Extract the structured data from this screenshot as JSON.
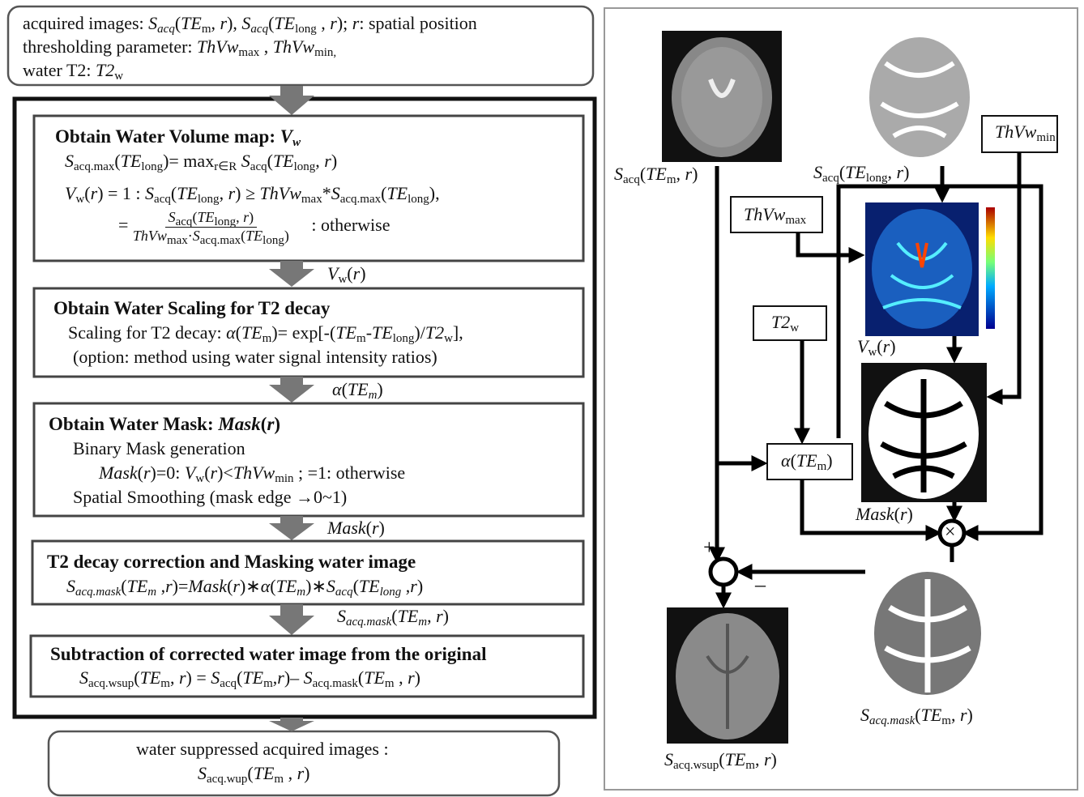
{
  "left": {
    "input": [
      [
        "acquired images: ",
        "S",
        "acq",
        "(",
        "TE",
        "m",
        ", ",
        "r",
        "), ",
        "S",
        "acq",
        "(",
        "TE",
        "long",
        " , ",
        "r",
        ");   ",
        "r",
        ": spatial position"
      ],
      [
        "thresholding parameter:  ",
        "ThVw",
        "max",
        " , ",
        "ThVw",
        "min,"
      ],
      [
        "water T2: ",
        "T2",
        "w"
      ]
    ],
    "steps": [
      {
        "title": [
          "Obtain Water Volume map: ",
          "V",
          "w"
        ],
        "lines": [
          [
            "S",
            "acq.max",
            "(",
            "TE",
            "long",
            ")= max",
            "r∈R",
            " S",
            "acq",
            "(",
            "TE",
            "long",
            ", ",
            "r",
            ")"
          ],
          [
            "V",
            "w",
            "(",
            "r",
            ") = 1 :  ",
            "S",
            "acq",
            "(",
            "TE",
            "long",
            ", ",
            "r",
            ") ≥ ",
            "ThVw",
            "max",
            "*",
            "S",
            "acq.max",
            "(",
            "TE",
            "long",
            "),"
          ]
        ],
        "fraction": {
          "eq": [
            "="
          ],
          "num": [
            "S",
            "acq",
            "(",
            "TE",
            "long",
            ", ",
            "r",
            ")"
          ],
          "den": [
            "ThVw",
            "max",
            "·",
            "S",
            "acq.max",
            "(",
            "TE",
            "long",
            ")"
          ],
          "tail": [
            ":   otherwise"
          ]
        }
      },
      {
        "title": [
          "Obtain Water Scaling for T2 decay"
        ],
        "lines": [
          [
            "Scaling for T2 decay: ",
            "α",
            "(",
            "TE",
            "m",
            ")= exp[-(",
            "TE",
            "m",
            "-",
            "TE",
            "long",
            ")/",
            "T2",
            "w",
            "],"
          ],
          [
            "(option:  method using water signal intensity ratios)"
          ]
        ]
      },
      {
        "title": [
          "Obtain Water Mask: ",
          "Mask",
          "(",
          "r",
          ")"
        ],
        "lines": [
          [
            "Binary Mask generation"
          ],
          [
            "Mask",
            "(",
            "r",
            ")=0: ",
            "V",
            "w",
            "(",
            "r",
            ")<",
            "ThVw",
            "min",
            "  ; =1: otherwise"
          ],
          [
            "Spatial Smoothing    (mask edge →0~1)"
          ]
        ]
      },
      {
        "title": [
          "T2 decay correction and Masking water image"
        ],
        "lines": [
          [
            "S",
            "acq.mask",
            "(",
            "TE",
            "m",
            " ,",
            "r",
            ")=",
            "Mask",
            "(",
            "r",
            ")∗",
            "α",
            "(",
            "TE",
            "m",
            ")∗",
            "S",
            "acq",
            "(",
            "TE",
            "long",
            " ,",
            "r",
            ")"
          ]
        ]
      },
      {
        "title": [
          "Subtraction of corrected water image from the original"
        ],
        "lines": [
          [
            "S",
            "acq.wsup",
            "(",
            "TE",
            "m",
            ", ",
            "r",
            ") = ",
            "S",
            "acq",
            "(",
            "TE",
            "m",
            ",",
            "r",
            ")– ",
            "S",
            "acq.mask",
            "(",
            "TE",
            "m",
            " , ",
            "r",
            ")"
          ]
        ]
      }
    ],
    "connectors": [
      [
        "V",
        "w",
        "(",
        "r",
        ")"
      ],
      [
        "α",
        "(",
        "TE",
        "m",
        ")"
      ],
      [
        "Mask",
        "(",
        "r",
        ")"
      ],
      [
        "S",
        "acq.mask",
        "(",
        "TE",
        "m",
        ", ",
        "r",
        ")"
      ]
    ],
    "output": [
      [
        "water suppressed acquired images :"
      ],
      [
        "S",
        "acq.wup",
        "(",
        "TE",
        "m",
        " , ",
        "r",
        ")"
      ]
    ]
  },
  "right": {
    "labels": {
      "sacq_m": [
        "S",
        "acq",
        "(",
        "TE",
        "m",
        ", ",
        "r",
        ")"
      ],
      "sacq_long": [
        "S",
        "acq",
        "(",
        "TE",
        "long",
        ", ",
        "r",
        ")"
      ],
      "thvw_min": [
        "ThVw",
        "min"
      ],
      "thvw_max": [
        "ThVw",
        "max"
      ],
      "vw": [
        "V",
        "w",
        "(",
        "r",
        ")"
      ],
      "t2w": [
        "T2",
        "w"
      ],
      "alpha": [
        "α",
        "(",
        "TE",
        "m",
        ")"
      ],
      "mask": [
        "Mask",
        "(",
        "r",
        ")"
      ],
      "sacq_mask": [
        "S",
        "acq.mask",
        "(",
        "TE",
        "m",
        ", ",
        "r",
        ")"
      ],
      "sacq_wsup": [
        "S",
        "acq.wsup",
        "(",
        "TE",
        "m",
        ", ",
        "r",
        ")"
      ]
    },
    "signs": {
      "plus": "+",
      "minus": "–",
      "times": "×"
    }
  }
}
